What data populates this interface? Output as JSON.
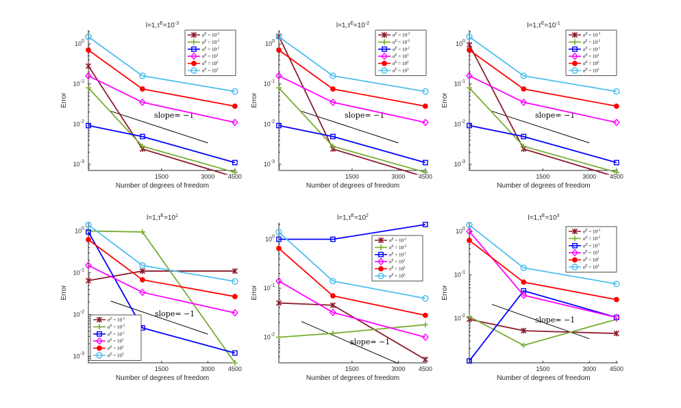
{
  "figure": {
    "background": "#ffffff"
  },
  "series_styles": [
    {
      "color": "#8B1C2C",
      "marker": "x-star"
    },
    {
      "color": "#77AC30",
      "marker": "plus"
    },
    {
      "color": "#0000FF",
      "marker": "square"
    },
    {
      "color": "#FF00FF",
      "marker": "diamond"
    },
    {
      "color": "#FF0000",
      "marker": "filled-circle"
    },
    {
      "color": "#4DBEEE",
      "marker": "circle"
    }
  ],
  "chart_data": [
    {
      "type": "line",
      "title": "l=1,τ^E=10^-3",
      "title_parts": {
        "base": "l=1,τ",
        "sup1": "E",
        "mid": "=10",
        "sup2": "-3"
      },
      "xlabel": "Number of degrees of freedom",
      "ylabel": "Error",
      "xscale": "log",
      "yscale": "log",
      "x": [
        500,
        1125,
        4500
      ],
      "xticks": [
        1500,
        3000,
        4500
      ],
      "xtick_labels": [
        "1500",
        "3000",
        "4500"
      ],
      "xlim": [
        500,
        4600
      ],
      "ylim": [
        0.0007,
        2.2
      ],
      "yticks": [
        0.001,
        0.01,
        0.1,
        1
      ],
      "ytick_labels": [
        {
          "base": "10",
          "exp": "-3"
        },
        {
          "base": "10",
          "exp": "-2"
        },
        {
          "base": "10",
          "exp": "-1"
        },
        {
          "base": "10",
          "exp": "0"
        }
      ],
      "legend_position": "top-right",
      "series": [
        {
          "name": "σ^E = 10^-3",
          "name_parts": {
            "exp": "-3"
          },
          "values": [
            0.28,
            0.0024,
            0.00048
          ]
        },
        {
          "name": "σ^E = 10^-2",
          "name_parts": {
            "exp": "-2"
          },
          "values": [
            0.08,
            0.0028,
            0.00063
          ]
        },
        {
          "name": "σ^E = 10^-1",
          "name_parts": {
            "exp": "-1"
          },
          "values": [
            0.0092,
            0.0049,
            0.0011
          ]
        },
        {
          "name": "σ^E = 10^1",
          "name_parts": {
            "exp": "1"
          },
          "values": [
            0.16,
            0.035,
            0.011
          ]
        },
        {
          "name": "σ^E = 10^2",
          "name_parts": {
            "exp": "2"
          },
          "values": [
            0.7,
            0.075,
            0.028
          ]
        },
        {
          "name": "σ^E = 10^3",
          "name_parts": {
            "exp": "3"
          },
          "values": [
            1.5,
            0.16,
            0.065
          ]
        }
      ],
      "slope_line": {
        "label": "slope= −1",
        "x": [
          700,
          3000
        ],
        "y": [
          0.021,
          0.0034
        ]
      }
    },
    {
      "type": "line",
      "title": "l=1,τ^E=10^-2",
      "title_parts": {
        "base": "l=1,τ",
        "sup1": "E",
        "mid": "=10",
        "sup2": "-2"
      },
      "xlabel": "Number of degrees of freedom",
      "ylabel": "Error",
      "xscale": "log",
      "yscale": "log",
      "x": [
        500,
        1125,
        4500
      ],
      "xticks": [
        1500,
        3000,
        4500
      ],
      "xtick_labels": [
        "1500",
        "3000",
        "4500"
      ],
      "xlim": [
        500,
        4600
      ],
      "ylim": [
        0.0007,
        2.2
      ],
      "yticks": [
        0.001,
        0.01,
        0.1,
        1
      ],
      "ytick_labels": [
        {
          "base": "10",
          "exp": "-3"
        },
        {
          "base": "10",
          "exp": "-2"
        },
        {
          "base": "10",
          "exp": "-1"
        },
        {
          "base": "10",
          "exp": "0"
        }
      ],
      "legend_position": "top-right",
      "series": [
        {
          "name": "σ^E = 10^-3",
          "name_parts": {
            "exp": "-3"
          },
          "values": [
            1.55,
            0.0024,
            0.00048
          ]
        },
        {
          "name": "σ^E = 10^-2",
          "name_parts": {
            "exp": "-2"
          },
          "values": [
            0.08,
            0.0028,
            0.00063
          ]
        },
        {
          "name": "σ^E = 10^-1",
          "name_parts": {
            "exp": "-1"
          },
          "values": [
            0.0092,
            0.0049,
            0.0011
          ]
        },
        {
          "name": "σ^E = 10^1",
          "name_parts": {
            "exp": "1"
          },
          "values": [
            0.16,
            0.035,
            0.011
          ]
        },
        {
          "name": "σ^E = 10^2",
          "name_parts": {
            "exp": "2"
          },
          "values": [
            0.7,
            0.075,
            0.028
          ]
        },
        {
          "name": "σ^E = 10^3",
          "name_parts": {
            "exp": "3"
          },
          "values": [
            1.5,
            0.16,
            0.065
          ]
        }
      ],
      "slope_line": {
        "label": "slope= −1",
        "x": [
          700,
          3000
        ],
        "y": [
          0.021,
          0.0034
        ]
      }
    },
    {
      "type": "line",
      "title": "l=1,τ^E=10^-1",
      "title_parts": {
        "base": "l=1,τ",
        "sup1": "E",
        "mid": "=10",
        "sup2": "-1"
      },
      "xlabel": "Number of degrees of freedom",
      "ylabel": "Error",
      "xscale": "log",
      "yscale": "log",
      "x": [
        500,
        1125,
        4500
      ],
      "xticks": [
        1500,
        3000,
        4500
      ],
      "xtick_labels": [
        "1500",
        "3000",
        "4500"
      ],
      "xlim": [
        500,
        4600
      ],
      "ylim": [
        0.0007,
        2.2
      ],
      "yticks": [
        0.001,
        0.01,
        0.1,
        1
      ],
      "ytick_labels": [
        {
          "base": "10",
          "exp": "-3"
        },
        {
          "base": "10",
          "exp": "-2"
        },
        {
          "base": "10",
          "exp": "-1"
        },
        {
          "base": "10",
          "exp": "0"
        }
      ],
      "legend_position": "top-right",
      "series": [
        {
          "name": "σ^E = 10^-3",
          "name_parts": {
            "exp": "-3"
          },
          "values": [
            0.95,
            0.0024,
            0.00048
          ]
        },
        {
          "name": "σ^E = 10^-2",
          "name_parts": {
            "exp": "-2"
          },
          "values": [
            0.08,
            0.0028,
            0.00063
          ]
        },
        {
          "name": "σ^E = 10^-1",
          "name_parts": {
            "exp": "-1"
          },
          "values": [
            0.0092,
            0.0049,
            0.0011
          ]
        },
        {
          "name": "σ^E = 10^1",
          "name_parts": {
            "exp": "1"
          },
          "values": [
            0.16,
            0.035,
            0.011
          ]
        },
        {
          "name": "σ^E = 10^2",
          "name_parts": {
            "exp": "2"
          },
          "values": [
            0.7,
            0.075,
            0.028
          ]
        },
        {
          "name": "σ^E = 10^3",
          "name_parts": {
            "exp": "3"
          },
          "values": [
            1.5,
            0.16,
            0.065
          ]
        }
      ],
      "slope_line": {
        "label": "slope= −1",
        "x": [
          700,
          3000
        ],
        "y": [
          0.021,
          0.0034
        ]
      }
    },
    {
      "type": "line",
      "title": "l=1,τ^E=10^1",
      "title_parts": {
        "base": "l=1,τ",
        "sup1": "E",
        "mid": "=10",
        "sup2": "1"
      },
      "xlabel": "Number of degrees of freedom",
      "ylabel": "Error",
      "xscale": "log",
      "yscale": "log",
      "x": [
        500,
        1125,
        4500
      ],
      "xticks": [
        1500,
        3000,
        4500
      ],
      "xtick_labels": [
        "1500",
        "3000",
        "4500"
      ],
      "xlim": [
        500,
        4600
      ],
      "ylim": [
        0.0007,
        1.6
      ],
      "yticks": [
        0.001,
        0.01,
        0.1,
        1
      ],
      "ytick_labels": [
        {
          "base": "10",
          "exp": "-3"
        },
        {
          "base": "10",
          "exp": "-2"
        },
        {
          "base": "10",
          "exp": "-1"
        },
        {
          "base": "10",
          "exp": "0"
        }
      ],
      "legend_position": "bottom-left",
      "series": [
        {
          "name": "σ^E = 10^-3",
          "name_parts": {
            "exp": "-3"
          },
          "values": [
            0.065,
            0.11,
            0.11
          ]
        },
        {
          "name": "σ^E = 10^-2",
          "name_parts": {
            "exp": "-2"
          },
          "values": [
            1.0,
            0.95,
            0.0007
          ]
        },
        {
          "name": "σ^E = 10^-1",
          "name_parts": {
            "exp": "-1"
          },
          "values": [
            0.95,
            0.0048,
            0.0012
          ]
        },
        {
          "name": "σ^E = 10^1",
          "name_parts": {
            "exp": "1"
          },
          "values": [
            0.15,
            0.034,
            0.011
          ]
        },
        {
          "name": "σ^E = 10^2",
          "name_parts": {
            "exp": "2"
          },
          "values": [
            0.62,
            0.068,
            0.027
          ]
        },
        {
          "name": "σ^E = 10^3",
          "name_parts": {
            "exp": "3"
          },
          "values": [
            1.4,
            0.15,
            0.062
          ]
        }
      ],
      "slope_line": {
        "label": "slope= −1",
        "x": [
          700,
          3000
        ],
        "y": [
          0.021,
          0.0034
        ]
      }
    },
    {
      "type": "line",
      "title": "l=1,τ^E=10^2",
      "title_parts": {
        "base": "l=1,τ",
        "sup1": "E",
        "mid": "=10",
        "sup2": "2"
      },
      "xlabel": "Number of degrees of freedom",
      "ylabel": "Error",
      "xscale": "log",
      "yscale": "log",
      "x": [
        500,
        1125,
        4500
      ],
      "xticks": [
        1500,
        3000,
        4500
      ],
      "xtick_labels": [
        "1500",
        "3000",
        "4500"
      ],
      "xlim": [
        500,
        4600
      ],
      "ylim": [
        0.003,
        2.2
      ],
      "yticks": [
        0.01,
        0.1,
        1
      ],
      "ytick_labels": [
        {
          "base": "10",
          "exp": "-2"
        },
        {
          "base": "10",
          "exp": "-1"
        },
        {
          "base": "10",
          "exp": "0"
        }
      ],
      "legend_position": "right",
      "series": [
        {
          "name": "σ^E = 10^-3",
          "name_parts": {
            "exp": "-3"
          },
          "values": [
            0.05,
            0.045,
            0.0035
          ]
        },
        {
          "name": "σ^E = 10^-2",
          "name_parts": {
            "exp": "-2"
          },
          "values": [
            0.01,
            0.012,
            0.018
          ]
        },
        {
          "name": "σ^E = 10^-1",
          "name_parts": {
            "exp": "-1"
          },
          "values": [
            1.0,
            1.0,
            2.0
          ]
        },
        {
          "name": "σ^E = 10^1",
          "name_parts": {
            "exp": "1"
          },
          "values": [
            0.14,
            0.032,
            0.01
          ]
        },
        {
          "name": "σ^E = 10^2",
          "name_parts": {
            "exp": "2"
          },
          "values": [
            0.65,
            0.07,
            0.028
          ]
        },
        {
          "name": "σ^E = 10^3",
          "name_parts": {
            "exp": "3"
          },
          "values": [
            1.4,
            0.14,
            0.062
          ]
        }
      ],
      "slope_line": {
        "label": "slope= −1",
        "x": [
          700,
          3000
        ],
        "y": [
          0.021,
          0.0029
        ]
      }
    },
    {
      "type": "line",
      "title": "l=1,τ^E=10^3",
      "title_parts": {
        "base": "l=1,τ",
        "sup1": "E",
        "mid": "=10",
        "sup2": "3"
      },
      "xlabel": "Number of degrees of freedom",
      "ylabel": "Error",
      "xscale": "log",
      "yscale": "log",
      "x": [
        500,
        1125,
        4500
      ],
      "xticks": [
        1500,
        3000,
        4500
      ],
      "xtick_labels": [
        "1500",
        "3000",
        "4500"
      ],
      "xlim": [
        500,
        4600
      ],
      "ylim": [
        0.00095,
        1.6
      ],
      "yticks": [
        0.01,
        0.1,
        1
      ],
      "ytick_labels": [
        {
          "base": "10",
          "exp": "-2"
        },
        {
          "base": "10",
          "exp": "-1"
        },
        {
          "base": "10",
          "exp": "0"
        }
      ],
      "legend_position": "top-right",
      "series": [
        {
          "name": "σ^E = 10^-3",
          "name_parts": {
            "exp": "-3"
          },
          "values": [
            0.0095,
            0.0052,
            0.0045
          ]
        },
        {
          "name": "σ^E = 10^-2",
          "name_parts": {
            "exp": "-2"
          },
          "values": [
            0.011,
            0.0024,
            0.0095
          ]
        },
        {
          "name": "σ^E = 10^-1",
          "name_parts": {
            "exp": "-1"
          },
          "values": [
            0.00105,
            0.043,
            0.0105
          ]
        },
        {
          "name": "σ^E = 10^1",
          "name_parts": {
            "exp": "1"
          },
          "values": [
            1.0,
            0.034,
            0.0105
          ]
        },
        {
          "name": "σ^E = 10^2",
          "name_parts": {
            "exp": "2"
          },
          "values": [
            0.62,
            0.068,
            0.027
          ]
        },
        {
          "name": "σ^E = 10^3",
          "name_parts": {
            "exp": "3"
          },
          "values": [
            1.4,
            0.145,
            0.062
          ]
        }
      ],
      "slope_line": {
        "label": "slope= −1",
        "x": [
          700,
          3000
        ],
        "y": [
          0.021,
          0.0034
        ]
      }
    }
  ]
}
